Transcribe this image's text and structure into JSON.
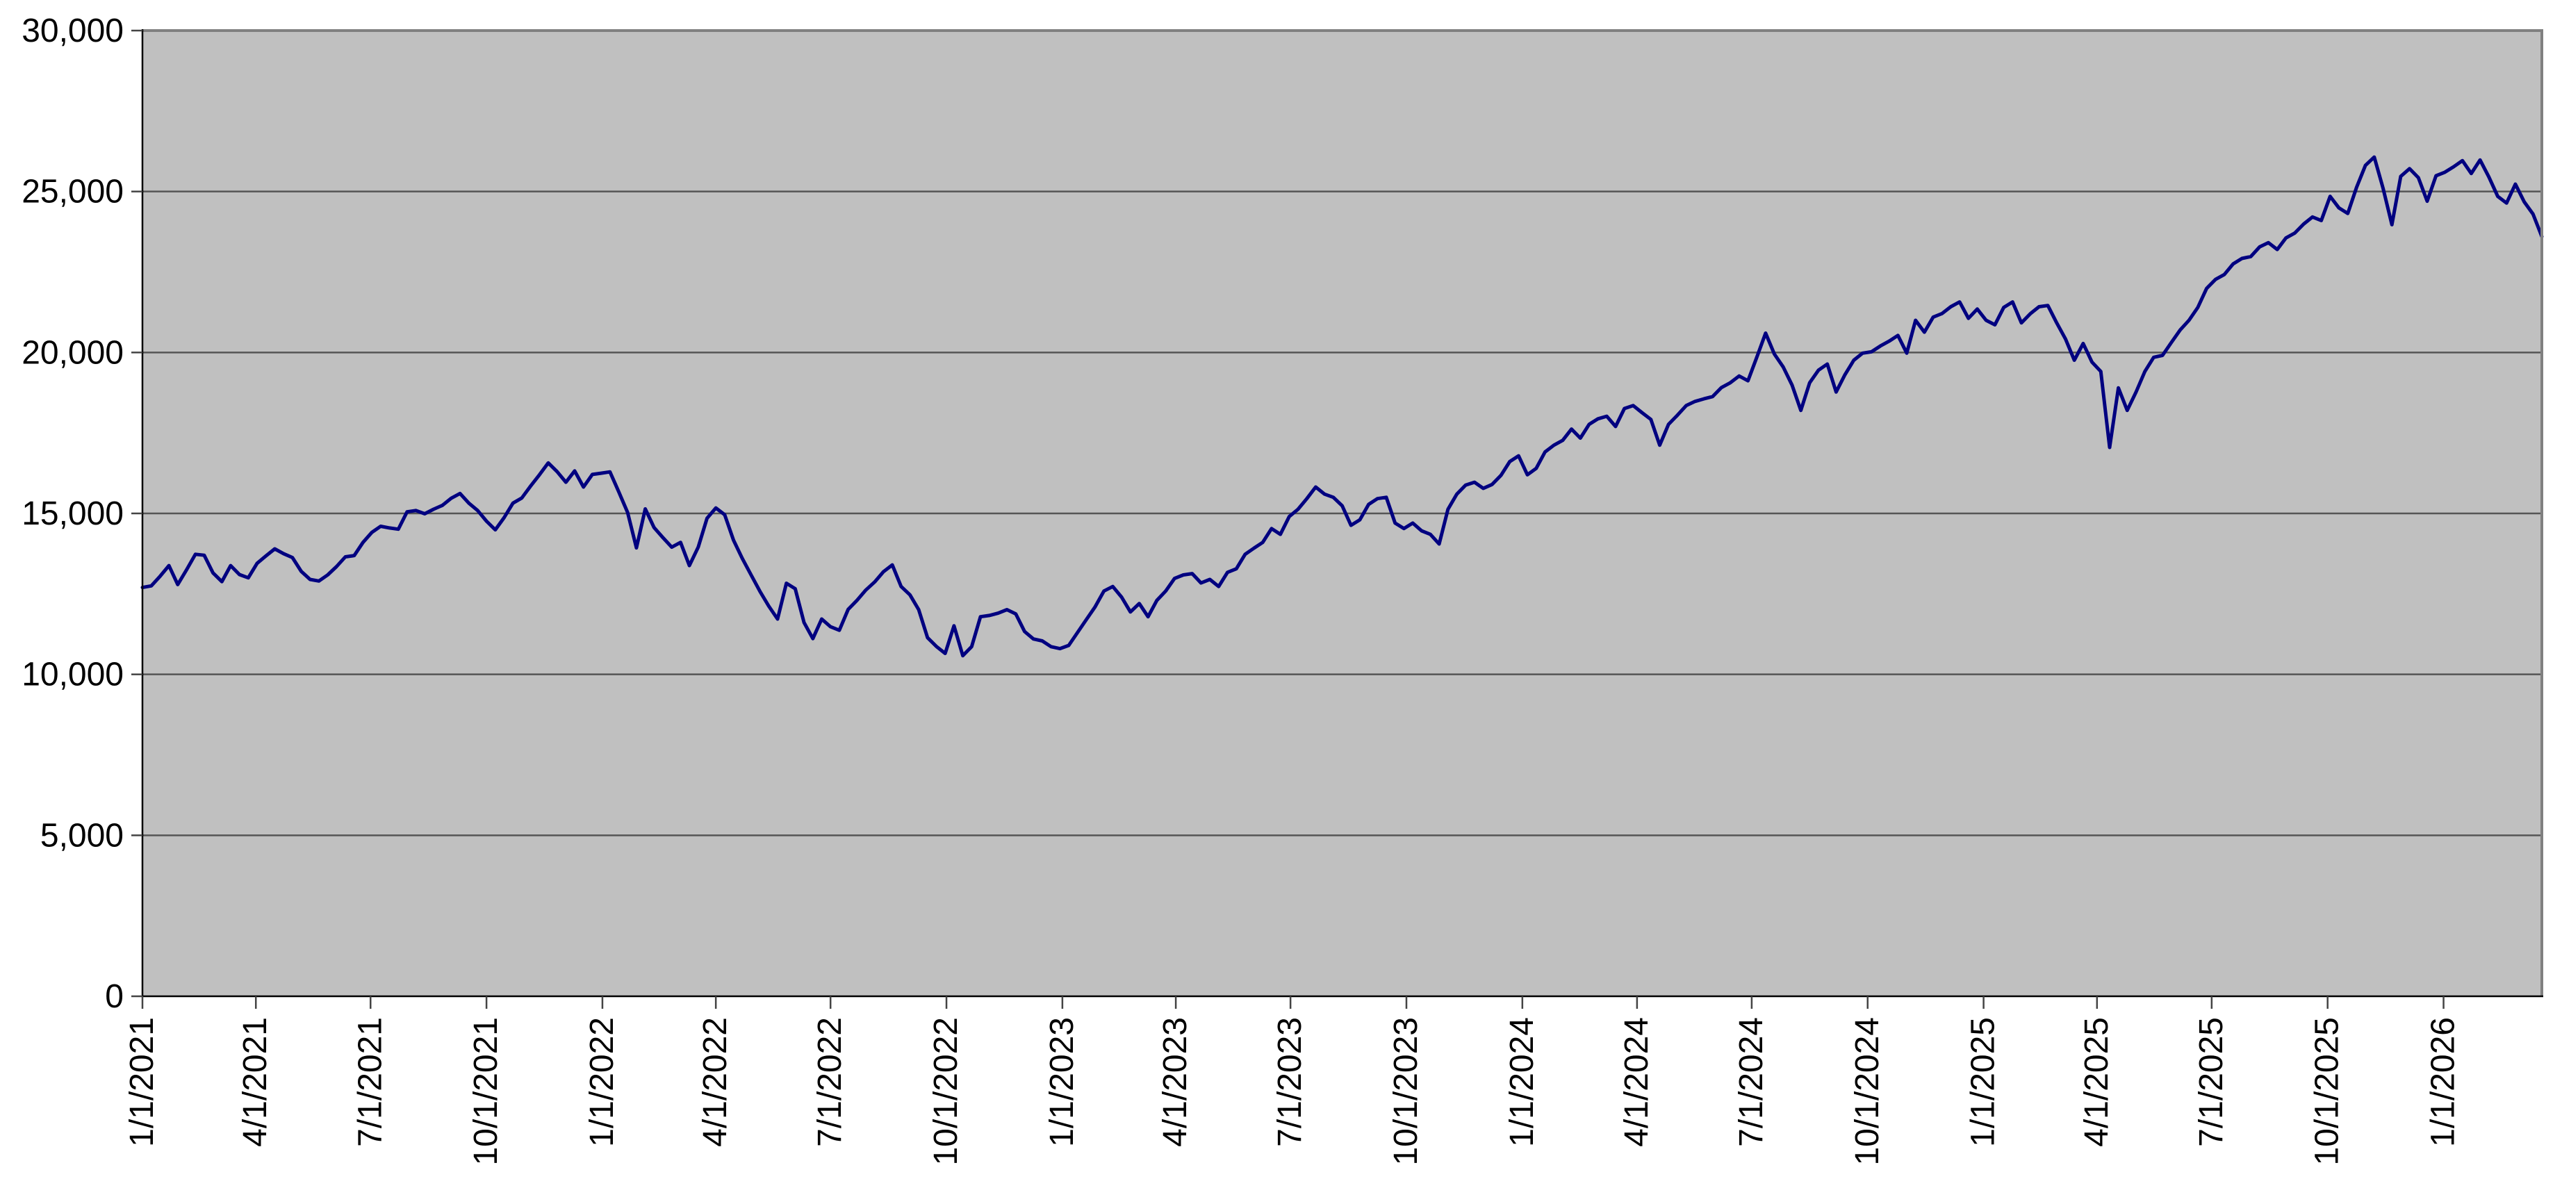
{
  "chart_data": {
    "type": "line",
    "title": "",
    "y_axis": {
      "min": 0,
      "max": 30000,
      "tick_interval": 5000,
      "tick_labels": [
        "0",
        "5,000",
        "10,000",
        "15,000",
        "20,000",
        "25,000",
        "30,000"
      ],
      "gridlines": true
    },
    "x_axis": {
      "tick_labels": [
        "1/1/2021",
        "4/1/2021",
        "7/1/2021",
        "10/1/2021",
        "1/1/2022",
        "4/1/2022",
        "7/1/2022",
        "10/1/2022",
        "1/1/2023",
        "4/1/2023",
        "7/1/2023",
        "10/1/2023",
        "1/1/2024",
        "4/1/2024",
        "7/1/2024",
        "10/1/2024",
        "1/1/2025",
        "4/1/2025",
        "7/1/2025",
        "10/1/2025",
        "1/1/2026"
      ],
      "label_rotation_deg": -90,
      "span_days": 1904,
      "gridlines": false
    },
    "legend": {
      "visible": false
    },
    "series": [
      {
        "color": "#000080",
        "stroke_width": 5,
        "start_date": "1/1/2021",
        "interval_days": 7,
        "values": [
          12700,
          12750,
          13050,
          13380,
          12790,
          13250,
          13730,
          13700,
          13150,
          12880,
          13380,
          13100,
          13000,
          13450,
          13680,
          13900,
          13750,
          13630,
          13200,
          12950,
          12900,
          13090,
          13350,
          13650,
          13690,
          14100,
          14410,
          14600,
          14550,
          14510,
          15050,
          15090,
          14990,
          15130,
          15250,
          15470,
          15620,
          15320,
          15090,
          14760,
          14490,
          14870,
          15320,
          15480,
          15850,
          16200,
          16570,
          16300,
          15970,
          16320,
          15820,
          16210,
          16250,
          16290,
          15670,
          15030,
          13930,
          15140,
          14560,
          14250,
          13950,
          14100,
          13380,
          13950,
          14850,
          15170,
          14960,
          14170,
          13600,
          13090,
          12580,
          12120,
          11720,
          12830,
          12660,
          11610,
          11110,
          11720,
          11480,
          11370,
          12020,
          12300,
          12620,
          12870,
          13190,
          13400,
          12730,
          12470,
          12010,
          11140,
          10870,
          10650,
          11510,
          10580,
          10860,
          11790,
          11830,
          11900,
          12010,
          11880,
          11330,
          11100,
          11040,
          10860,
          10800,
          10900,
          11300,
          11700,
          12100,
          12590,
          12730,
          12400,
          11940,
          12200,
          11790,
          12300,
          12590,
          12980,
          13090,
          13130,
          12840,
          12950,
          12730,
          13170,
          13280,
          13730,
          13920,
          14100,
          14530,
          14350,
          14900,
          15130,
          15460,
          15820,
          15600,
          15500,
          15240,
          14630,
          14800,
          15280,
          15460,
          15500,
          14700,
          14530,
          14700,
          14460,
          14350,
          14050,
          15130,
          15600,
          15880,
          15970,
          15780,
          15900,
          16180,
          16610,
          16790,
          16200,
          16400,
          16910,
          17120,
          17270,
          17620,
          17340,
          17770,
          17940,
          18020,
          17700,
          18260,
          18350,
          18130,
          17920,
          17120,
          17770,
          18050,
          18350,
          18480,
          18560,
          18630,
          18910,
          19060,
          19270,
          19120,
          19850,
          20600,
          19950,
          19550,
          18990,
          18200,
          19060,
          19450,
          19640,
          18770,
          19310,
          19760,
          19980,
          20020,
          20200,
          20350,
          20530,
          19980,
          21000,
          20630,
          21100,
          21210,
          21420,
          21570,
          21060,
          21350,
          21000,
          20860,
          21400,
          21570,
          20920,
          21200,
          21420,
          21460,
          20920,
          20420,
          19760,
          20280,
          19700,
          19410,
          17050,
          18900,
          18200,
          18770,
          19410,
          19850,
          19910,
          20310,
          20700,
          21000,
          21400,
          21990,
          22270,
          22420,
          22750,
          22920,
          22980,
          23280,
          23410,
          23200,
          23560,
          23710,
          23990,
          24210,
          24100,
          24850,
          24490,
          24320,
          25130,
          25810,
          26070,
          25100,
          23970,
          25470,
          25710,
          25430,
          24700,
          25490,
          25600,
          25770,
          25960,
          25560,
          25980,
          25450,
          24850,
          24640,
          25230,
          24680,
          24300,
          23600
        ]
      }
    ],
    "colors": {
      "page_background": "#FFFFFF",
      "plot_background": "#C0C0C0",
      "gridline": "#555555",
      "axis_line": "#000000",
      "tick_mark": "#444444",
      "plot_border": "#808080"
    }
  }
}
